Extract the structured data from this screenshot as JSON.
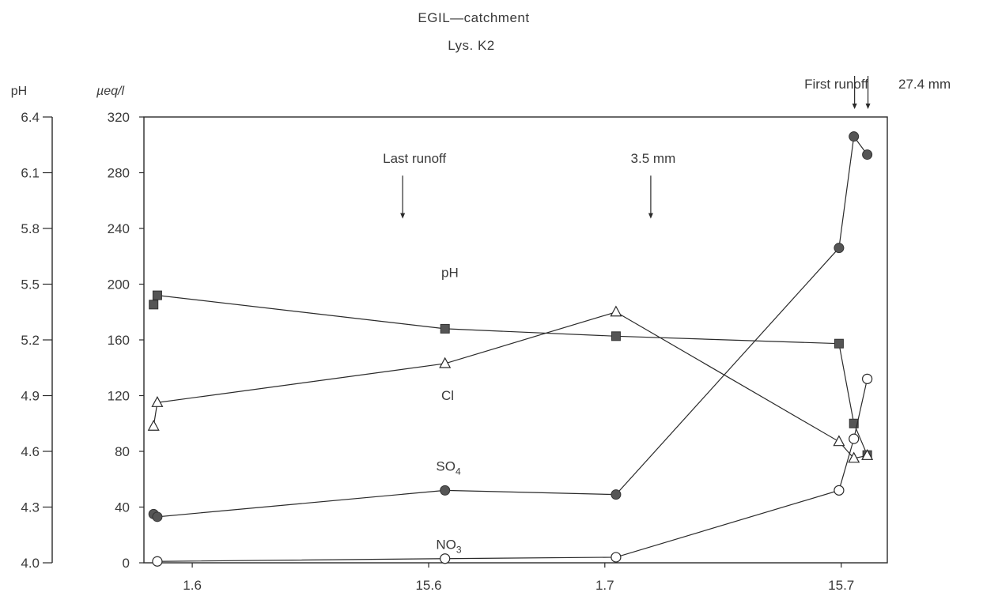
{
  "chart_data": {
    "type": "line",
    "title": "EGIL—catchment",
    "subtitle": "Lys. K2",
    "ylabel_left": "pH",
    "ylabel_right": "µeq/l",
    "ylim": [
      0,
      320
    ],
    "ph_lim": [
      4.0,
      6.4
    ],
    "yticks": [
      "0",
      "40",
      "80",
      "120",
      "160",
      "200",
      "240",
      "280",
      "320"
    ],
    "ph_ticks": [
      "4.0",
      "4.3",
      "4.6",
      "4.9",
      "5.2",
      "5.5",
      "5.8",
      "6.1",
      "6.4"
    ],
    "xlim": [
      0,
      100
    ],
    "xticks": [
      {
        "label": "1.6",
        "x": 6.5
      },
      {
        "label": "15.6",
        "x": 38.3
      },
      {
        "label": "1.7",
        "x": 62.0
      },
      {
        "label": "15.7",
        "x": 93.8
      }
    ],
    "series": [
      {
        "name": "pH",
        "marker": "square",
        "points": [
          [
            1.3,
            5.39
          ],
          [
            1.8,
            5.44
          ],
          [
            40.5,
            5.26
          ],
          [
            63.5,
            5.22
          ],
          [
            93.5,
            5.18
          ],
          [
            95.5,
            4.75
          ],
          [
            97.3,
            4.58
          ]
        ]
      },
      {
        "name": "Cl",
        "marker": "triangle",
        "points": [
          [
            1.3,
            98
          ],
          [
            1.8,
            115
          ],
          [
            40.5,
            143
          ],
          [
            63.5,
            180
          ],
          [
            93.5,
            87
          ],
          [
            95.5,
            75
          ],
          [
            97.3,
            77
          ]
        ]
      },
      {
        "name": "SO4",
        "marker": "circle-filled",
        "points": [
          [
            1.3,
            35
          ],
          [
            1.8,
            33
          ],
          [
            40.5,
            52
          ],
          [
            63.5,
            49
          ],
          [
            93.5,
            226
          ],
          [
            95.5,
            306
          ],
          [
            97.3,
            293
          ]
        ]
      },
      {
        "name": "NO3",
        "marker": "circle-open",
        "points": [
          [
            1.8,
            1
          ],
          [
            40.5,
            3
          ],
          [
            63.5,
            4
          ],
          [
            93.5,
            52
          ],
          [
            95.5,
            89
          ],
          [
            97.3,
            132
          ]
        ]
      }
    ],
    "series_labels": [
      {
        "text": "pH",
        "sub": "",
        "x": 40.0,
        "y": 205
      },
      {
        "text": "Cl",
        "sub": "",
        "x": 40.0,
        "y": 117
      },
      {
        "text": "SO",
        "sub": "4",
        "x": 39.3,
        "y": 66
      },
      {
        "text": "NO",
        "sub": "3",
        "x": 39.3,
        "y": 10
      }
    ],
    "annotations": [
      {
        "text": "Last runoff",
        "x": 36.4,
        "y": 287,
        "arrow_tip": 247
      },
      {
        "text": "3.5 mm",
        "x": 68.5,
        "y": 287,
        "arrow_tip": 247
      }
    ],
    "first_runoff": {
      "text": "First runoff",
      "amount": "27.4 mm",
      "arrows_x": [
        95.6,
        97.4
      ]
    }
  }
}
